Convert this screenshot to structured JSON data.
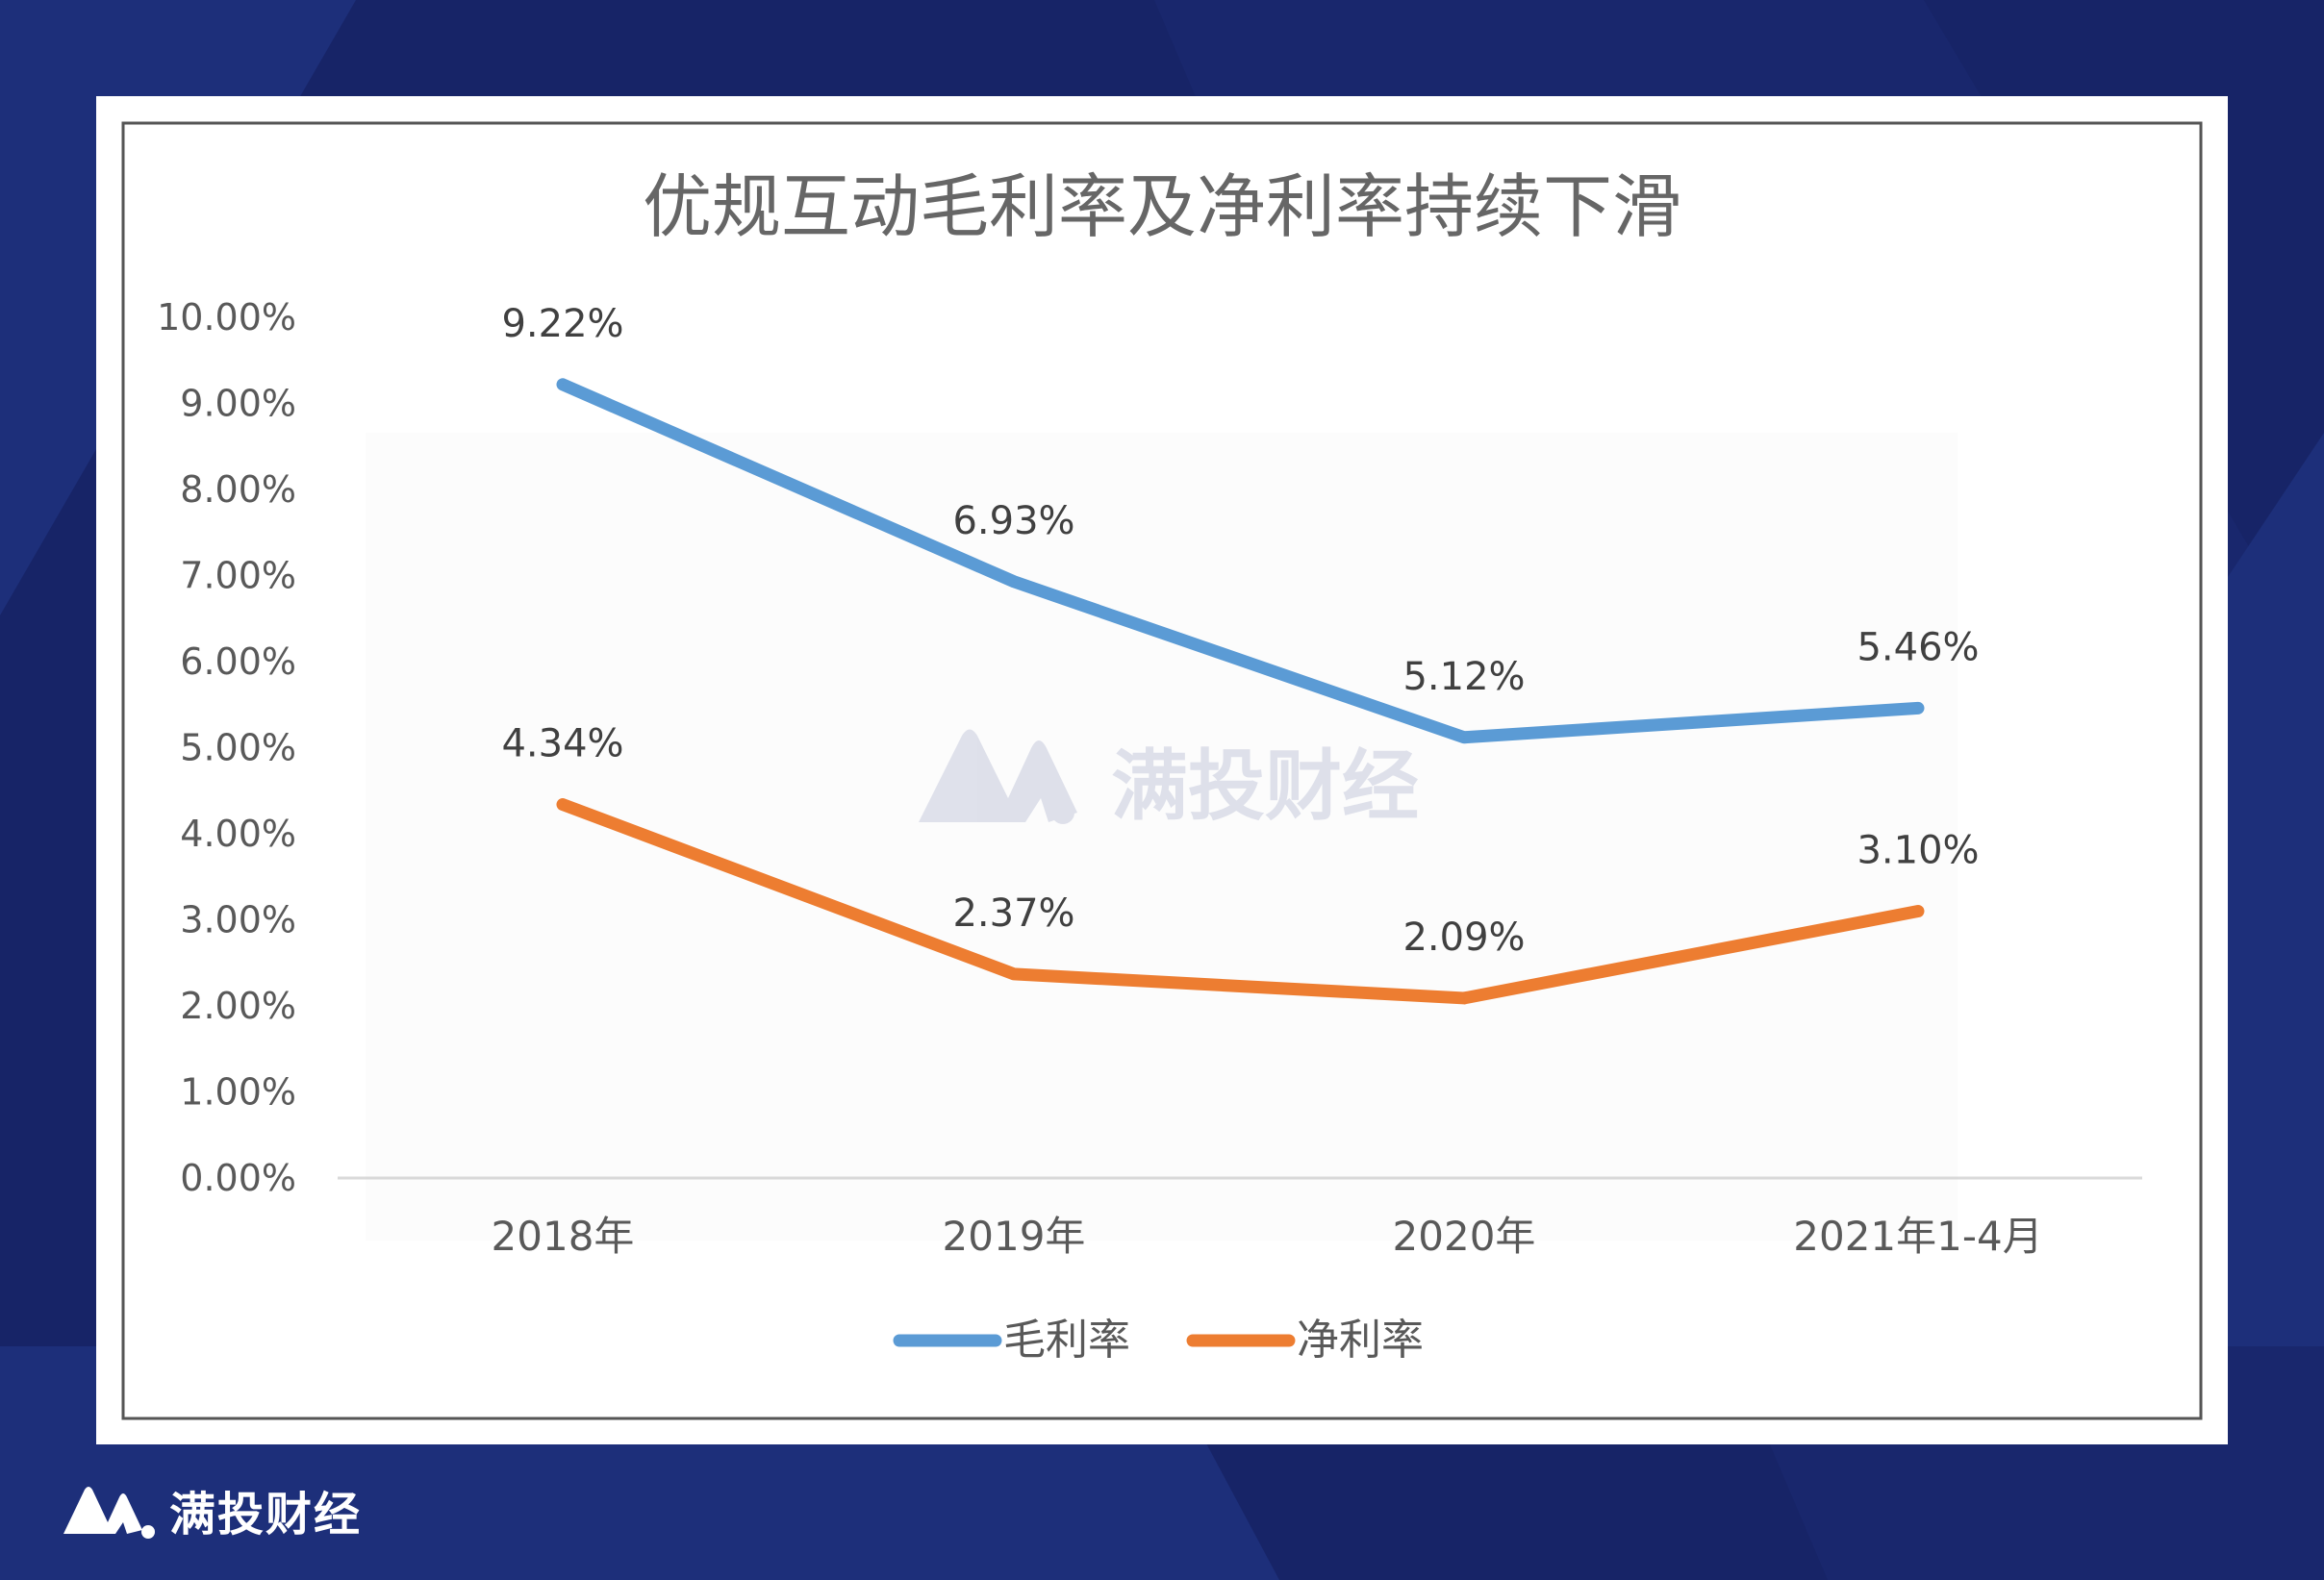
{
  "brand": {
    "name": "满投财经",
    "watermark": "满投财经"
  },
  "colors": {
    "background": "#172467",
    "panel": "#1d2f7a",
    "gross": "#5b9bd5",
    "net": "#ed7d31"
  },
  "chart_data": {
    "type": "line",
    "title": "优规互动毛利率及净利率持续下滑",
    "categories": [
      "2018年",
      "2019年",
      "2020年",
      "2021年1-4月"
    ],
    "series": [
      {
        "name": "毛利率",
        "color": "#5b9bd5",
        "values": [
          9.22,
          6.93,
          5.12,
          5.46
        ],
        "labels": [
          "9.22%",
          "6.93%",
          "5.12%",
          "5.46%"
        ]
      },
      {
        "name": "净利率",
        "color": "#ed7d31",
        "values": [
          4.34,
          2.37,
          2.09,
          3.1
        ],
        "labels": [
          "4.34%",
          "2.37%",
          "2.09%",
          "3.10%"
        ]
      }
    ],
    "yticks": [
      "0.00%",
      "1.00%",
      "2.00%",
      "3.00%",
      "4.00%",
      "5.00%",
      "6.00%",
      "7.00%",
      "8.00%",
      "9.00%",
      "10.00%"
    ],
    "ylim": [
      0,
      10
    ],
    "ylabel": "",
    "xlabel": "",
    "grid": false,
    "legend": "bottom"
  }
}
